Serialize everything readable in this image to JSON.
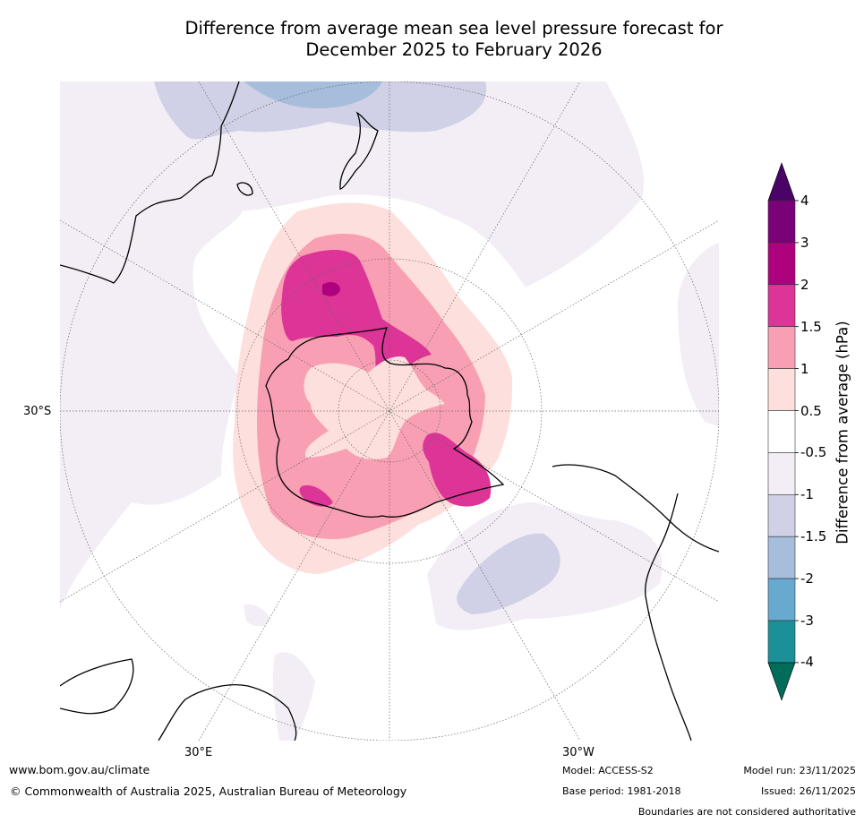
{
  "title_line1": "Difference from average mean sea level pressure forecast for",
  "title_line2": "December 2025 to February 2026",
  "map": {
    "projection": "south-polar-stereographic",
    "lat_labels": [
      "30°S"
    ],
    "lon_labels": [
      "30°E",
      "30°W"
    ],
    "regions": [
      {
        "name": "antarctic-positive-anomaly",
        "level": "0.5 to 1",
        "color": "#fde0de"
      },
      {
        "name": "antarctic-positive-anomaly-inner",
        "level": "1 to 1.5",
        "color": "#f9a0b5"
      },
      {
        "name": "ross-sea-high",
        "level": "1.5 to 2",
        "color": "#dd3497"
      },
      {
        "name": "ross-sea-core",
        "level": "2 to 3",
        "color": "#ae017e"
      },
      {
        "name": "weddell-sea-high",
        "level": "1.5 to 2",
        "color": "#dd3497"
      },
      {
        "name": "tasman-low",
        "level": "-1 to -1.5",
        "color": "#d0d1e6"
      },
      {
        "name": "tasman-low-core",
        "level": "-1.5 to -2",
        "color": "#a6bddb"
      },
      {
        "name": "south-atlantic-low",
        "level": "-1 to -1.5",
        "color": "#d0d1e6"
      },
      {
        "name": "mid-latitude-weak-negative",
        "level": "-0.5 to -1",
        "color": "#f3edf6"
      }
    ]
  },
  "colorbar": {
    "label": "Difference from average (hPa)",
    "ticks": [
      "4",
      "3",
      "2",
      "1.5",
      "1",
      "0.5",
      "-0.5",
      "-1",
      "-1.5",
      "-2",
      "-3",
      "-4"
    ],
    "colors": {
      "above_4": "#4a0468",
      "3_to_4": "#7a0177",
      "2_to_3": "#ae017e",
      "1.5_to_2": "#dd3497",
      "1_to_1.5": "#f99fb4",
      "0.5_to_1": "#fde0dd",
      "-0.5_to_0.5": "#ffffff",
      "-1_to_-0.5": "#f3eef6",
      "-1.5_to_-1": "#d0d1e6",
      "-2_to_-1.5": "#a6bddb",
      "-3_to_-2": "#67a9cf",
      "-4_to_-3": "#1c9099",
      "below_-4": "#016c59"
    }
  },
  "footer": {
    "url": "www.bom.gov.au/climate",
    "copyright": "© Commonwealth of Australia 2025, Australian Bureau of Meteorology",
    "model": "Model: ACCESS-S2",
    "base_period": "Base period: 1981-2018",
    "model_run": "Model run: 23/11/2025",
    "issued": "Issued: 26/11/2025",
    "disclaimer": "Boundaries are not considered authoritative"
  }
}
